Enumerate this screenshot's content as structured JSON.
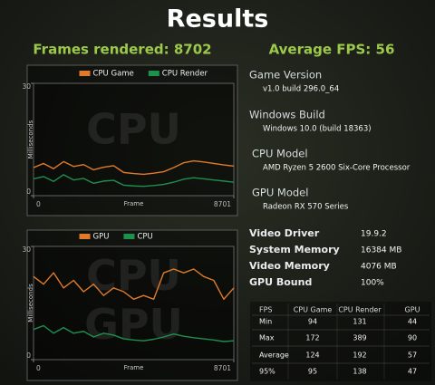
{
  "header": {
    "title": "Results",
    "frames": "Frames rendered: 8702",
    "fps": "Average FPS: 56"
  },
  "chart_data": [
    {
      "type": "line",
      "y_label": "Milliseconds",
      "x_label": "Frame",
      "watermark": [
        "CPU"
      ],
      "xlim": [
        0,
        8701
      ],
      "xticks": [
        0,
        8701
      ],
      "ylim": [
        0,
        30
      ],
      "yticks": [
        0,
        30
      ],
      "x": [
        0,
        435,
        870,
        1305,
        1740,
        2175,
        2610,
        3045,
        3480,
        3915,
        4350,
        4785,
        5220,
        5655,
        6090,
        6525,
        6960,
        7395,
        7830,
        8265,
        8701
      ],
      "series": [
        {
          "name": "CPU Game",
          "color": "#e07a2a",
          "values": [
            7.5,
            8.6,
            7.2,
            9.1,
            7.8,
            8.3,
            6.9,
            7.6,
            8.0,
            6.2,
            5.9,
            5.7,
            6.0,
            6.4,
            7.5,
            8.8,
            9.3,
            9.0,
            8.6,
            8.2,
            7.9
          ]
        },
        {
          "name": "CPU Render",
          "color": "#1f8f4e",
          "values": [
            4.5,
            5.1,
            3.8,
            5.6,
            4.2,
            4.6,
            3.3,
            3.9,
            4.1,
            2.8,
            2.6,
            2.5,
            2.7,
            3.0,
            3.6,
            4.4,
            4.8,
            4.5,
            4.2,
            3.9,
            3.6
          ]
        }
      ]
    },
    {
      "type": "line",
      "y_label": "Milliseconds",
      "x_label": "Frame",
      "watermark": [
        "CPU",
        "GPU"
      ],
      "xlim": [
        0,
        8701
      ],
      "xticks": [
        0,
        8701
      ],
      "ylim": [
        0,
        30
      ],
      "yticks": [
        0,
        30
      ],
      "x": [
        0,
        435,
        870,
        1305,
        1740,
        2175,
        2610,
        3045,
        3480,
        3915,
        4350,
        4785,
        5220,
        5655,
        6090,
        6525,
        6960,
        7395,
        7830,
        8265,
        8701
      ],
      "series": [
        {
          "name": "GPU",
          "color": "#e07a2a",
          "values": [
            22,
            20,
            23,
            19,
            21,
            18,
            20,
            17,
            19,
            18,
            16,
            17,
            16,
            23,
            24,
            23,
            24,
            22,
            21,
            16,
            19
          ]
        },
        {
          "name": "CPU",
          "color": "#1f8f4e",
          "values": [
            8,
            9,
            7,
            8.5,
            7,
            7.5,
            6,
            7,
            6.5,
            5.5,
            5.2,
            5,
            5.4,
            6,
            6.8,
            6.2,
            5.8,
            5.5,
            5.2,
            4.8,
            5
          ]
        }
      ]
    }
  ],
  "info": [
    {
      "label": "Game Version",
      "value": "v1.0 build 296.0_64"
    },
    {
      "label": "Windows Build",
      "value": "Windows 10.0 (build 18363)"
    },
    {
      "label": "CPU Model",
      "value": "AMD Ryzen 5 2600 Six-Core Processor"
    },
    {
      "label": "GPU Model",
      "value": "Radeon RX 570 Series"
    }
  ],
  "specs": [
    {
      "label": "Video Driver",
      "value": "19.9.2"
    },
    {
      "label": "System Memory",
      "value": "16384 MB"
    },
    {
      "label": "Video Memory",
      "value": "4076 MB"
    },
    {
      "label": "GPU Bound",
      "value": "100%"
    }
  ],
  "table": {
    "header": [
      "FPS",
      "CPU Game",
      "CPU Render",
      "GPU"
    ],
    "rows": [
      [
        "Min",
        "94",
        "131",
        "44"
      ],
      [
        "Max",
        "172",
        "389",
        "90"
      ],
      [
        "Average",
        "124",
        "192",
        "57"
      ],
      [
        "95%",
        "95",
        "138",
        "47"
      ]
    ]
  }
}
